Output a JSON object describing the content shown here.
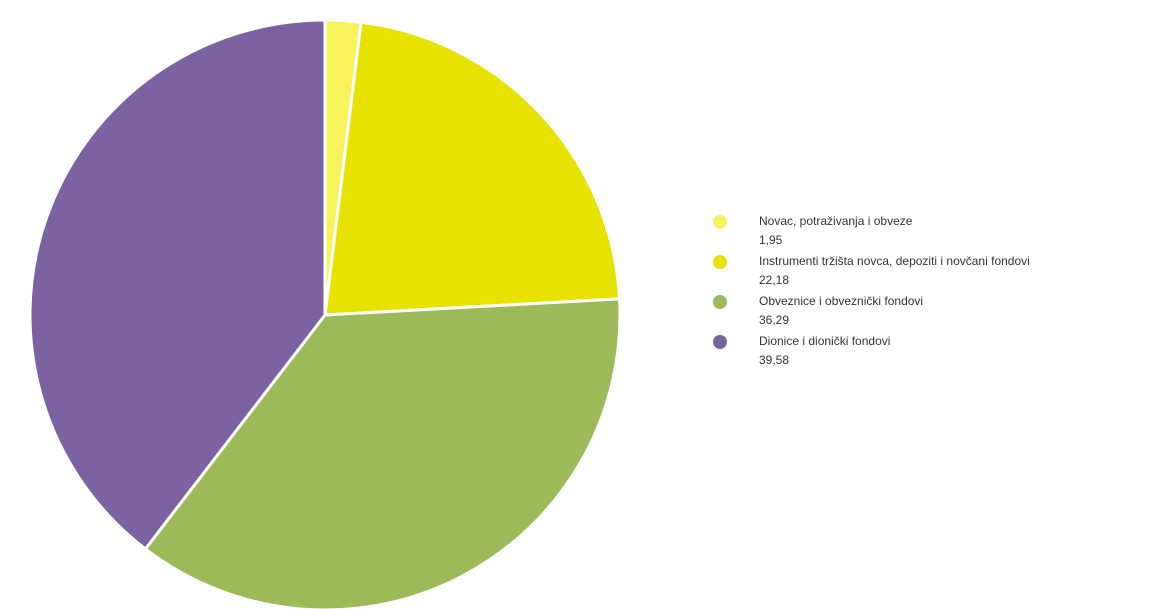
{
  "chart_data": {
    "type": "pie",
    "labels": [
      "Novac, potraživanja i obveze",
      "Instrumenti tržišta novca, depoziti i novčani fondovi",
      "Obveznice i obveznički fondovi",
      "Dionice i dionički fondovi"
    ],
    "values": [
      1.95,
      22.18,
      36.29,
      39.58
    ],
    "value_labels": [
      "1,95",
      "22,18",
      "36,29",
      "39,58"
    ],
    "colors": [
      "#f8f35a",
      "#e8e200",
      "#9cba58",
      "#7c62a0"
    ],
    "start_angle_deg": 0,
    "direction": "clockwise",
    "legend": "right"
  }
}
